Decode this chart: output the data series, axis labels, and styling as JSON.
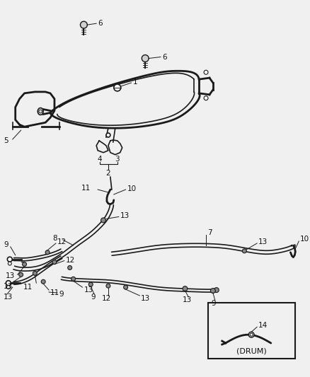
{
  "bg_color": "#f0f0f0",
  "line_color": "#1a1a1a",
  "label_color": "#111111",
  "font_size": 7.5,
  "fig_width": 4.38,
  "fig_height": 5.33,
  "dpi": 100
}
